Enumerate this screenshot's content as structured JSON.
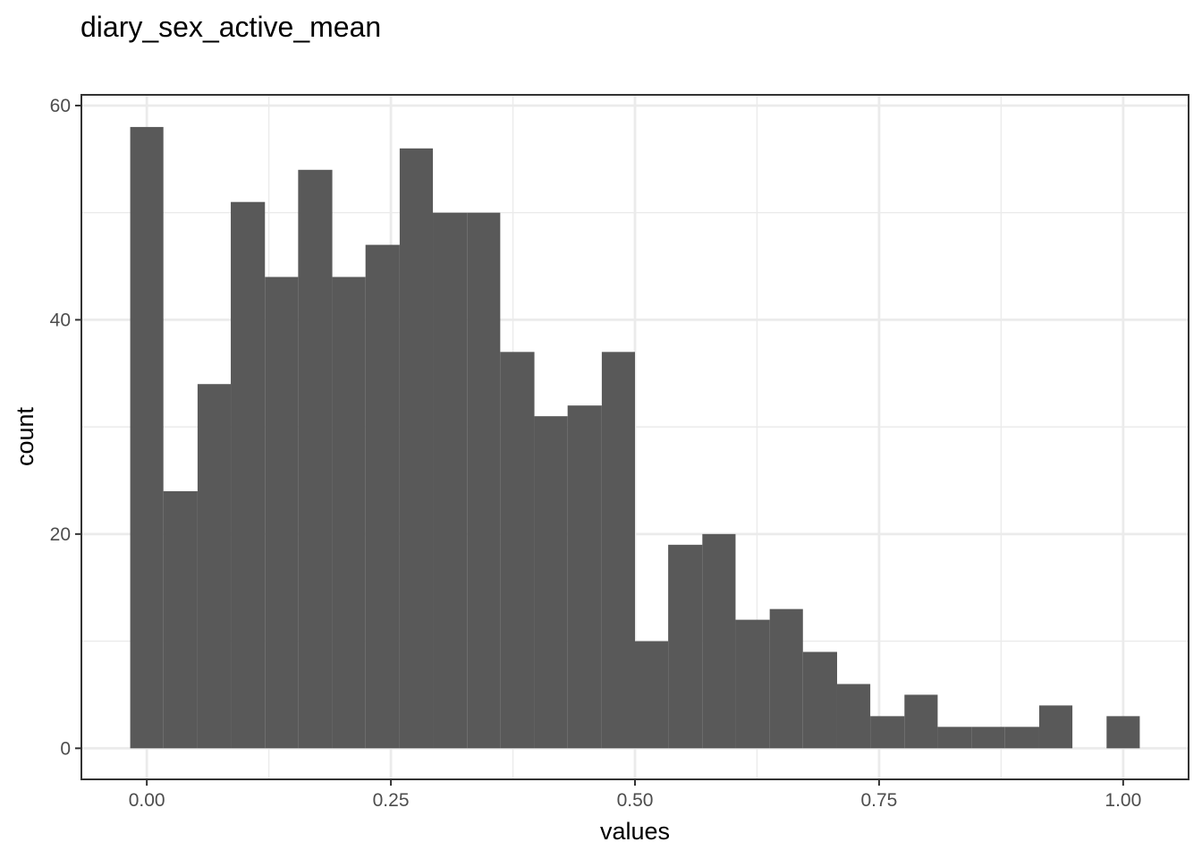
{
  "chart_data": {
    "type": "bar",
    "title": "diary_sex_active_mean",
    "xlabel": "values",
    "ylabel": "count",
    "bin_width": 0.0345,
    "bins": [
      {
        "x0": -0.017,
        "x1": 0.017,
        "count": 58
      },
      {
        "x0": 0.017,
        "x1": 0.052,
        "count": 24
      },
      {
        "x0": 0.052,
        "x1": 0.086,
        "count": 34
      },
      {
        "x0": 0.086,
        "x1": 0.121,
        "count": 51
      },
      {
        "x0": 0.121,
        "x1": 0.155,
        "count": 44
      },
      {
        "x0": 0.155,
        "x1": 0.19,
        "count": 54
      },
      {
        "x0": 0.19,
        "x1": 0.224,
        "count": 44
      },
      {
        "x0": 0.224,
        "x1": 0.259,
        "count": 47
      },
      {
        "x0": 0.259,
        "x1": 0.293,
        "count": 56
      },
      {
        "x0": 0.293,
        "x1": 0.328,
        "count": 50
      },
      {
        "x0": 0.328,
        "x1": 0.362,
        "count": 50
      },
      {
        "x0": 0.362,
        "x1": 0.397,
        "count": 37
      },
      {
        "x0": 0.397,
        "x1": 0.431,
        "count": 31
      },
      {
        "x0": 0.431,
        "x1": 0.466,
        "count": 32
      },
      {
        "x0": 0.466,
        "x1": 0.5,
        "count": 37
      },
      {
        "x0": 0.5,
        "x1": 0.534,
        "count": 10
      },
      {
        "x0": 0.534,
        "x1": 0.569,
        "count": 19
      },
      {
        "x0": 0.569,
        "x1": 0.603,
        "count": 20
      },
      {
        "x0": 0.603,
        "x1": 0.638,
        "count": 12
      },
      {
        "x0": 0.638,
        "x1": 0.672,
        "count": 13
      },
      {
        "x0": 0.672,
        "x1": 0.707,
        "count": 9
      },
      {
        "x0": 0.707,
        "x1": 0.741,
        "count": 6
      },
      {
        "x0": 0.741,
        "x1": 0.776,
        "count": 3
      },
      {
        "x0": 0.776,
        "x1": 0.81,
        "count": 5
      },
      {
        "x0": 0.81,
        "x1": 0.845,
        "count": 2
      },
      {
        "x0": 0.845,
        "x1": 0.879,
        "count": 2
      },
      {
        "x0": 0.879,
        "x1": 0.914,
        "count": 2
      },
      {
        "x0": 0.914,
        "x1": 0.948,
        "count": 4
      },
      {
        "x0": 0.948,
        "x1": 0.983,
        "count": 0
      },
      {
        "x0": 0.983,
        "x1": 1.017,
        "count": 3
      }
    ],
    "xlim": [
      -0.067,
      1.067
    ],
    "ylim": [
      -2.9,
      61
    ],
    "x_ticks": [
      0,
      0.25,
      0.5,
      0.75,
      1
    ],
    "x_tick_labels": [
      "0.00",
      "0.25",
      "0.50",
      "0.75",
      "1.00"
    ],
    "y_ticks": [
      0,
      20,
      40,
      60
    ],
    "y_tick_labels": [
      "0",
      "20",
      "40",
      "60"
    ],
    "grid": true,
    "legend": "none",
    "colors": {
      "bar_fill": "#595959",
      "grid": "#ebebeb",
      "panel_border": "#333333",
      "tick_label": "#4d4d4d"
    }
  }
}
